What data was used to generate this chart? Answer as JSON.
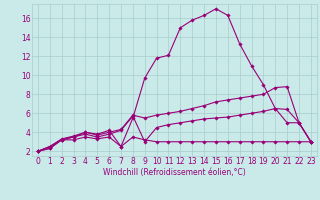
{
  "xlabel": "Windchill (Refroidissement éolien,°C)",
  "background_color": "#caeaea",
  "grid_color": "#aacccc",
  "line_color": "#990077",
  "x_ticks": [
    0,
    1,
    2,
    3,
    4,
    5,
    6,
    7,
    8,
    9,
    10,
    11,
    12,
    13,
    14,
    15,
    16,
    17,
    18,
    19,
    20,
    21,
    22,
    23
  ],
  "y_ticks": [
    2,
    4,
    6,
    8,
    10,
    12,
    14,
    16
  ],
  "xlim": [
    -0.5,
    23.5
  ],
  "ylim": [
    1.5,
    17.5
  ],
  "lines": [
    [
      2.0,
      2.3,
      3.2,
      3.2,
      3.5,
      3.3,
      3.5,
      2.5,
      3.5,
      3.2,
      3.0,
      3.0,
      3.0,
      3.0,
      3.0,
      3.0,
      3.0,
      3.0,
      3.0,
      3.0,
      3.0,
      3.0,
      3.0,
      3.0
    ],
    [
      2.0,
      2.3,
      3.2,
      3.5,
      3.8,
      3.5,
      3.8,
      4.2,
      5.7,
      3.0,
      4.5,
      4.8,
      5.0,
      5.2,
      5.4,
      5.5,
      5.6,
      5.8,
      6.0,
      6.2,
      6.5,
      6.4,
      5.0,
      3.0
    ],
    [
      2.0,
      2.5,
      3.2,
      3.5,
      4.0,
      3.7,
      4.0,
      4.3,
      5.8,
      5.5,
      5.8,
      6.0,
      6.2,
      6.5,
      6.8,
      7.2,
      7.4,
      7.6,
      7.8,
      8.0,
      8.7,
      8.8,
      5.0,
      3.0
    ],
    [
      2.0,
      2.5,
      3.3,
      3.6,
      4.0,
      3.8,
      4.2,
      2.5,
      5.5,
      9.7,
      11.8,
      12.1,
      15.0,
      15.8,
      16.3,
      17.0,
      16.3,
      13.3,
      11.0,
      9.0,
      6.5,
      5.0,
      5.0,
      3.0
    ]
  ],
  "tick_fontsize": 5.5,
  "xlabel_fontsize": 5.5
}
